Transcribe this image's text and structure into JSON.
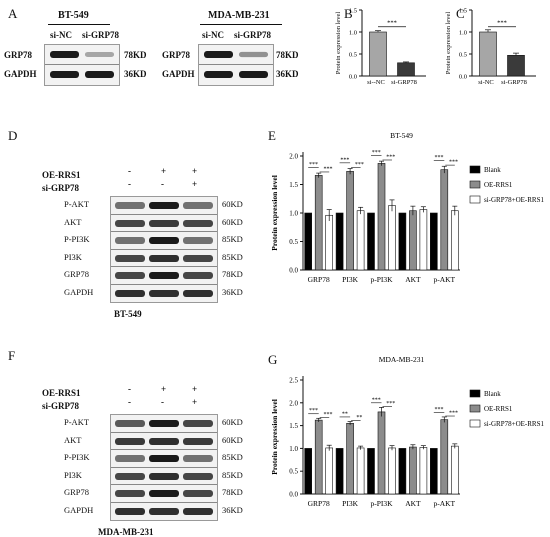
{
  "panels": {
    "A": "A",
    "B": "B",
    "C": "C",
    "D": "D",
    "E": "E",
    "F": "F",
    "G": "G"
  },
  "panel_A": {
    "left": {
      "cell_line": "BT-549",
      "lanes": [
        "si-NC",
        "si-GRP78"
      ],
      "rows": [
        {
          "protein": "GRP78",
          "size": "78KD",
          "intensity": [
            1.0,
            0.35
          ]
        },
        {
          "protein": "GAPDH",
          "size": "36KD",
          "intensity": [
            1.0,
            1.0
          ]
        }
      ]
    },
    "right": {
      "cell_line": "MDA-MB-231",
      "lanes": [
        "si-NC",
        "si-GRP78"
      ],
      "rows": [
        {
          "protein": "GRP78",
          "size": "78KD",
          "intensity": [
            1.0,
            0.45
          ]
        },
        {
          "protein": "GAPDH",
          "size": "36KD",
          "intensity": [
            1.0,
            1.0
          ]
        }
      ]
    }
  },
  "panel_D": {
    "cell_line": "BT-549",
    "treatments": [
      {
        "label": "OE-RRS1",
        "signs": [
          "-",
          "+",
          "+"
        ]
      },
      {
        "label": "si-GRP78",
        "signs": [
          "-",
          "-",
          "+"
        ]
      }
    ],
    "rows": [
      {
        "protein": "P-AKT",
        "size": "60KD",
        "intensity": [
          0.6,
          1.0,
          0.6
        ]
      },
      {
        "protein": "AKT",
        "size": "60KD",
        "intensity": [
          0.8,
          0.85,
          0.8
        ]
      },
      {
        "protein": "P-PI3K",
        "size": "85KD",
        "intensity": [
          0.6,
          1.0,
          0.6
        ]
      },
      {
        "protein": "PI3K",
        "size": "85KD",
        "intensity": [
          0.8,
          0.9,
          0.8
        ]
      },
      {
        "protein": "GRP78",
        "size": "78KD",
        "intensity": [
          0.8,
          1.0,
          0.8
        ]
      },
      {
        "protein": "GAPDH",
        "size": "36KD",
        "intensity": [
          0.9,
          0.9,
          0.9
        ]
      }
    ]
  },
  "panel_F": {
    "cell_line": "MDA-MB-231",
    "treatments": [
      {
        "label": "OE-RRS1",
        "signs": [
          "-",
          "+",
          "+"
        ]
      },
      {
        "label": "si-GRP78",
        "signs": [
          "-",
          "-",
          "+"
        ]
      }
    ],
    "rows": [
      {
        "protein": "P-AKT",
        "size": "60KD",
        "intensity": [
          0.7,
          1.0,
          0.8
        ]
      },
      {
        "protein": "AKT",
        "size": "60KD",
        "intensity": [
          0.85,
          0.9,
          0.85
        ]
      },
      {
        "protein": "P-PI3K",
        "size": "85KD",
        "intensity": [
          0.6,
          1.0,
          0.6
        ]
      },
      {
        "protein": "PI3K",
        "size": "85KD",
        "intensity": [
          0.8,
          0.9,
          0.8
        ]
      },
      {
        "protein": "GRP78",
        "size": "78KD",
        "intensity": [
          0.8,
          1.0,
          0.8
        ]
      },
      {
        "protein": "GAPDH",
        "size": "36KD",
        "intensity": [
          0.9,
          0.9,
          0.9
        ]
      }
    ]
  },
  "chart_data": [
    {
      "id": "B",
      "type": "bar",
      "categories": [
        "si--NC",
        "si-GRP78"
      ],
      "values": [
        1.0,
        0.3
      ],
      "errors": [
        0.03,
        0.02
      ],
      "ylabel": "Protein expression level",
      "ylim": [
        0,
        1.5
      ],
      "yticks": [
        "0.0",
        "0.5",
        "1.0",
        "1.5"
      ],
      "significance": "***",
      "colors": [
        "#a6a6a6",
        "#3a3a3a"
      ]
    },
    {
      "id": "C",
      "type": "bar",
      "categories": [
        "si-NC",
        "si-GRP78"
      ],
      "values": [
        1.0,
        0.47
      ],
      "errors": [
        0.05,
        0.05
      ],
      "ylabel": "Protein expression level",
      "ylim": [
        0,
        1.5
      ],
      "yticks": [
        "0.0",
        "0.5",
        "1.0",
        "1.5"
      ],
      "significance": "***",
      "colors": [
        "#a6a6a6",
        "#3a3a3a"
      ]
    },
    {
      "id": "E",
      "type": "bar",
      "title": "BT-549",
      "categories": [
        "GRP78",
        "PI3K",
        "p-PI3K",
        "AKT",
        "p-AKT"
      ],
      "series": [
        {
          "name": "Blank",
          "values": [
            1.0,
            1.0,
            1.0,
            1.0,
            1.0
          ],
          "errors": [
            0.0,
            0.0,
            0.0,
            0.0,
            0.0
          ],
          "color": "#000000"
        },
        {
          "name": "OE-RRS1",
          "values": [
            1.66,
            1.73,
            1.87,
            1.04,
            1.76
          ],
          "errors": [
            0.04,
            0.05,
            0.04,
            0.08,
            0.06
          ],
          "color": "#8c8c8c"
        },
        {
          "name": "si-GRP78+OE-RRS1",
          "values": [
            0.96,
            1.04,
            1.13,
            1.06,
            1.04
          ],
          "errors": [
            0.1,
            0.06,
            0.1,
            0.05,
            0.08
          ],
          "color": "#ffffff"
        }
      ],
      "significance": [
        [
          "***",
          "***"
        ],
        [
          "***",
          "***"
        ],
        [
          "***",
          "***"
        ],
        [
          "",
          ""
        ],
        [
          "***",
          "***"
        ]
      ],
      "ylabel": "Protein expression level",
      "ylim": [
        0,
        2.0
      ],
      "yticks": [
        "0.0",
        "0.5",
        "1.0",
        "1.5",
        "2.0"
      ],
      "legend": "right"
    },
    {
      "id": "G",
      "type": "bar",
      "title": "MDA-MB-231",
      "categories": [
        "GRP78",
        "PI3K",
        "p-PI3K",
        "AKT",
        "p-AKT"
      ],
      "series": [
        {
          "name": "Blank",
          "values": [
            1.0,
            1.0,
            1.0,
            1.0,
            1.0
          ],
          "errors": [
            0.0,
            0.0,
            0.0,
            0.0,
            0.0
          ],
          "color": "#000000"
        },
        {
          "name": "OE-RRS1",
          "values": [
            1.62,
            1.55,
            1.8,
            1.03,
            1.63
          ],
          "errors": [
            0.04,
            0.04,
            0.1,
            0.05,
            0.06
          ],
          "color": "#8c8c8c"
        },
        {
          "name": "si-GRP78+OE-RRS1",
          "values": [
            1.01,
            1.01,
            1.01,
            1.02,
            1.05
          ],
          "errors": [
            0.06,
            0.04,
            0.05,
            0.04,
            0.05
          ],
          "color": "#ffffff"
        }
      ],
      "significance": [
        [
          "***",
          "***"
        ],
        [
          "**",
          "**"
        ],
        [
          "***",
          "***"
        ],
        [
          "",
          ""
        ],
        [
          "***",
          "***"
        ]
      ],
      "ylabel": "Protein expression level",
      "ylim": [
        0,
        2.5
      ],
      "yticks": [
        "0.0",
        "0.5",
        "1.0",
        "1.5",
        "2.0",
        "2.5"
      ],
      "legend": "right"
    }
  ]
}
